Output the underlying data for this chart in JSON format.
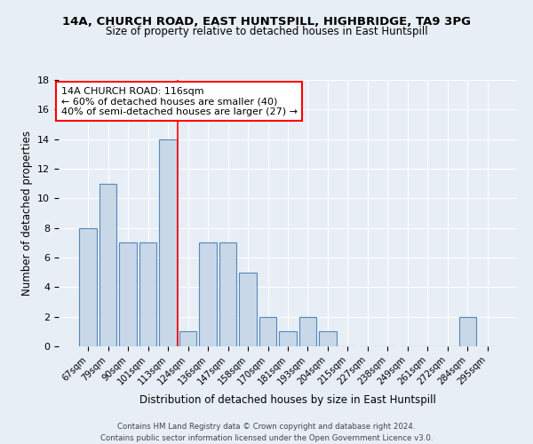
{
  "title1": "14A, CHURCH ROAD, EAST HUNTSPILL, HIGHBRIDGE, TA9 3PG",
  "title2": "Size of property relative to detached houses in East Huntspill",
  "xlabel": "Distribution of detached houses by size in East Huntspill",
  "ylabel": "Number of detached properties",
  "categories": [
    "67sqm",
    "79sqm",
    "90sqm",
    "101sqm",
    "113sqm",
    "124sqm",
    "136sqm",
    "147sqm",
    "158sqm",
    "170sqm",
    "181sqm",
    "193sqm",
    "204sqm",
    "215sqm",
    "227sqm",
    "238sqm",
    "249sqm",
    "261sqm",
    "272sqm",
    "284sqm",
    "295sqm"
  ],
  "values": [
    8,
    11,
    7,
    7,
    14,
    1,
    7,
    7,
    5,
    2,
    1,
    2,
    1,
    0,
    0,
    0,
    0,
    0,
    0,
    2,
    0
  ],
  "bar_color": "#c8d8e8",
  "bar_edge_color": "#5588bb",
  "vline_x": 4.5,
  "vline_color": "red",
  "annotation_text": "14A CHURCH ROAD: 116sqm\n← 60% of detached houses are smaller (40)\n40% of semi-detached houses are larger (27) →",
  "annotation_box_color": "white",
  "annotation_box_edge": "red",
  "ylim": [
    0,
    18
  ],
  "yticks": [
    0,
    2,
    4,
    6,
    8,
    10,
    12,
    14,
    16,
    18
  ],
  "footer": "Contains HM Land Registry data © Crown copyright and database right 2024.\nContains public sector information licensed under the Open Government Licence v3.0.",
  "bg_color": "#e8eef5",
  "grid_color": "white"
}
